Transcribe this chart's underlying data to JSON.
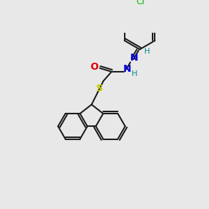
{
  "bg_color": "#e8e8e8",
  "bond_color": "#1a1a1a",
  "atom_colors": {
    "Cl": "#00bb00",
    "O": "#dd0000",
    "N": "#0000dd",
    "S": "#cccc00",
    "H_teal": "#008888"
  },
  "figsize": [
    3.0,
    3.0
  ],
  "dpi": 100,
  "lw": 1.5,
  "font_size_atom": 9,
  "font_size_h": 8
}
